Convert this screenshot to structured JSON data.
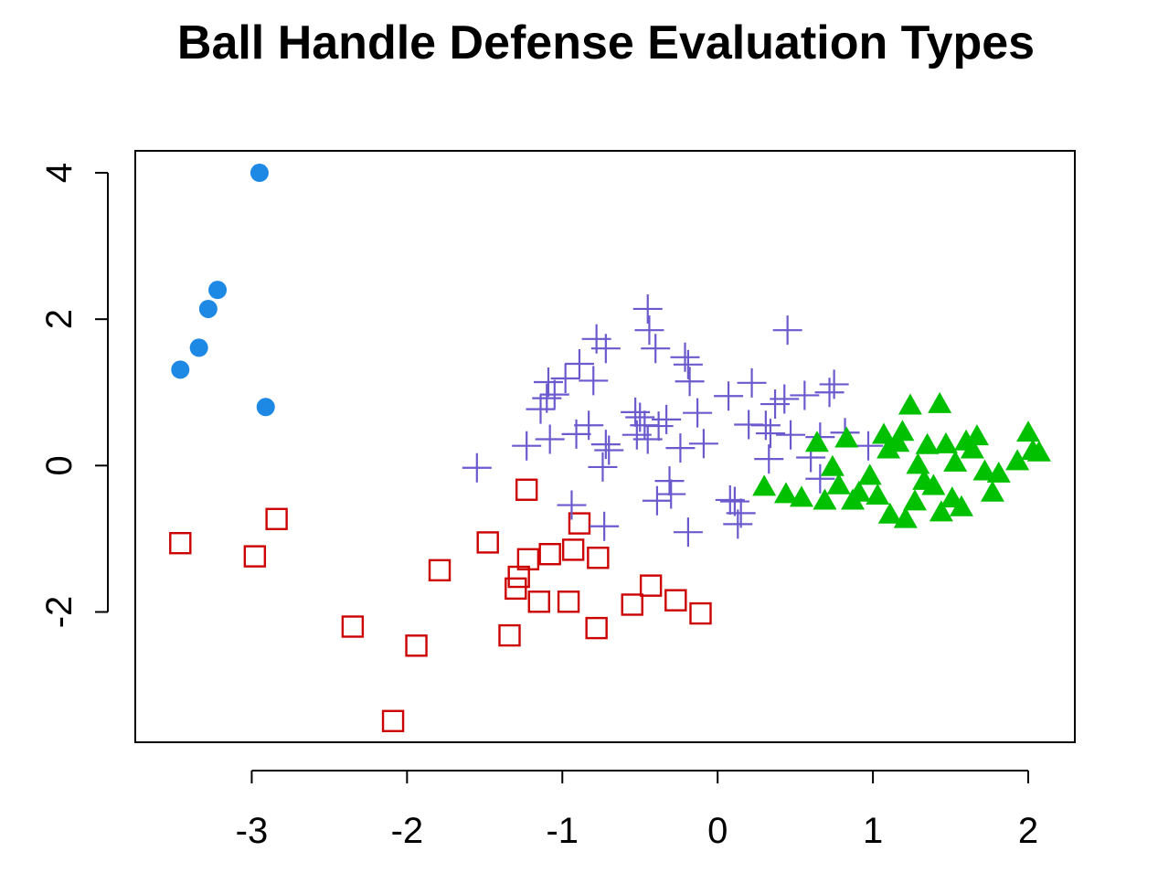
{
  "chart_data": {
    "type": "scatter",
    "title": "Ball Handle Defense Evaluation Types",
    "xlabel": "",
    "ylabel": "",
    "xlim": [
      -3.75,
      2.3
    ],
    "ylim": [
      -3.78,
      4.3
    ],
    "x_ticks": [
      -3,
      -2,
      -1,
      0,
      1,
      2
    ],
    "x_tick_labels": [
      "-3",
      "-2",
      "-1",
      "0",
      "1",
      "2"
    ],
    "y_ticks": [
      -2,
      0,
      2,
      4
    ],
    "y_tick_labels": [
      "-2",
      "0",
      "2",
      "4"
    ],
    "grid": false,
    "legend": "none",
    "series": [
      {
        "marker": "filled-circle",
        "color": "#1E88E5",
        "points": [
          [
            -2.95,
            4.0
          ],
          [
            -3.22,
            2.4
          ],
          [
            -3.28,
            2.14
          ],
          [
            -3.34,
            1.61
          ],
          [
            -3.46,
            1.31
          ],
          [
            -2.91,
            0.8
          ]
        ]
      },
      {
        "marker": "open-square",
        "color": "#CC0000",
        "points": [
          [
            -3.46,
            -1.06
          ],
          [
            -2.98,
            -1.24
          ],
          [
            -2.84,
            -0.73
          ],
          [
            -2.35,
            -2.2
          ],
          [
            -1.94,
            -2.46
          ],
          [
            -2.09,
            -3.49
          ],
          [
            -1.79,
            -1.43
          ],
          [
            -1.48,
            -1.05
          ],
          [
            -1.23,
            -0.33
          ],
          [
            -1.34,
            -2.32
          ],
          [
            -1.3,
            -1.68
          ],
          [
            -1.28,
            -1.52
          ],
          [
            -1.22,
            -1.28
          ],
          [
            -1.08,
            -1.21
          ],
          [
            -1.15,
            -1.86
          ],
          [
            -0.96,
            -1.86
          ],
          [
            -0.93,
            -1.15
          ],
          [
            -0.89,
            -0.79
          ],
          [
            -0.77,
            -1.26
          ],
          [
            -0.78,
            -2.22
          ],
          [
            -0.55,
            -1.9
          ],
          [
            -0.43,
            -1.64
          ],
          [
            -0.27,
            -1.84
          ],
          [
            -0.11,
            -2.02
          ]
        ]
      },
      {
        "marker": "plus",
        "color": "#6A5ACD",
        "points": [
          [
            -1.55,
            -0.03
          ],
          [
            -1.23,
            0.27
          ],
          [
            -1.14,
            0.77
          ],
          [
            -1.1,
            0.92
          ],
          [
            -1.08,
            0.36
          ],
          [
            -1.05,
            0.97
          ],
          [
            -1.09,
            1.14
          ],
          [
            -0.98,
            1.19
          ],
          [
            -0.89,
            1.39
          ],
          [
            -0.91,
            0.43
          ],
          [
            -0.83,
            0.55
          ],
          [
            -0.8,
            1.16
          ],
          [
            -0.78,
            1.73
          ],
          [
            -0.72,
            1.6
          ],
          [
            -0.7,
            0.21
          ],
          [
            -0.72,
            0.29
          ],
          [
            -0.74,
            -0.02
          ],
          [
            -0.73,
            -0.83
          ],
          [
            -0.94,
            -0.54
          ],
          [
            -0.53,
            0.73
          ],
          [
            -0.52,
            0.42
          ],
          [
            -0.5,
            0.66
          ],
          [
            -0.47,
            0.55
          ],
          [
            -0.45,
            0.36
          ],
          [
            -0.45,
            2.14
          ],
          [
            -0.44,
            1.85
          ],
          [
            -0.4,
            1.6
          ],
          [
            -0.38,
            0.54
          ],
          [
            -0.33,
            0.63
          ],
          [
            -0.31,
            -0.21
          ],
          [
            -0.3,
            -0.39
          ],
          [
            -0.39,
            -0.48
          ],
          [
            -0.24,
            0.24
          ],
          [
            -0.21,
            1.48
          ],
          [
            -0.19,
            1.38
          ],
          [
            -0.18,
            1.15
          ],
          [
            -0.13,
            0.72
          ],
          [
            -0.09,
            0.3
          ],
          [
            -0.19,
            -0.91
          ],
          [
            0.07,
            0.95
          ],
          [
            0.13,
            -0.8
          ],
          [
            0.15,
            -0.65
          ],
          [
            0.11,
            -0.49
          ],
          [
            0.08,
            -0.47
          ],
          [
            0.2,
            0.56
          ],
          [
            0.22,
            1.13
          ],
          [
            0.31,
            0.55
          ],
          [
            0.33,
            0.09
          ],
          [
            0.34,
            0.44
          ],
          [
            0.37,
            0.84
          ],
          [
            0.43,
            0.91
          ],
          [
            0.45,
            1.85
          ],
          [
            0.47,
            0.42
          ],
          [
            0.56,
            0.96
          ],
          [
            0.6,
            0.11
          ],
          [
            0.66,
            0.39
          ],
          [
            0.66,
            -0.18
          ],
          [
            0.72,
            1.0
          ],
          [
            0.75,
            1.11
          ],
          [
            0.82,
            0.45
          ],
          [
            0.97,
            0.27
          ]
        ]
      },
      {
        "marker": "filled-triangle",
        "color": "#00C000",
        "points": [
          [
            0.3,
            -0.3
          ],
          [
            0.44,
            -0.4
          ],
          [
            0.54,
            -0.45
          ],
          [
            0.64,
            0.3
          ],
          [
            0.69,
            -0.49
          ],
          [
            0.74,
            -0.03
          ],
          [
            0.78,
            -0.28
          ],
          [
            0.83,
            0.36
          ],
          [
            0.87,
            -0.49
          ],
          [
            0.91,
            -0.38
          ],
          [
            0.98,
            -0.15
          ],
          [
            1.03,
            -0.42
          ],
          [
            1.07,
            0.41
          ],
          [
            1.1,
            0.21
          ],
          [
            1.11,
            -0.68
          ],
          [
            1.16,
            0.3
          ],
          [
            1.19,
            0.45
          ],
          [
            1.21,
            -0.74
          ],
          [
            1.24,
            0.81
          ],
          [
            1.27,
            -0.5
          ],
          [
            1.29,
            0.0
          ],
          [
            1.33,
            -0.22
          ],
          [
            1.35,
            0.27
          ],
          [
            1.39,
            -0.29
          ],
          [
            1.43,
            0.83
          ],
          [
            1.44,
            -0.65
          ],
          [
            1.47,
            0.28
          ],
          [
            1.51,
            -0.46
          ],
          [
            1.53,
            0.03
          ],
          [
            1.57,
            -0.58
          ],
          [
            1.6,
            0.32
          ],
          [
            1.64,
            0.21
          ],
          [
            1.67,
            0.39
          ],
          [
            1.72,
            -0.09
          ],
          [
            1.77,
            -0.38
          ],
          [
            1.81,
            -0.12
          ],
          [
            1.93,
            0.05
          ],
          [
            2.0,
            0.44
          ],
          [
            2.03,
            0.19
          ],
          [
            2.07,
            0.17
          ]
        ]
      }
    ]
  }
}
